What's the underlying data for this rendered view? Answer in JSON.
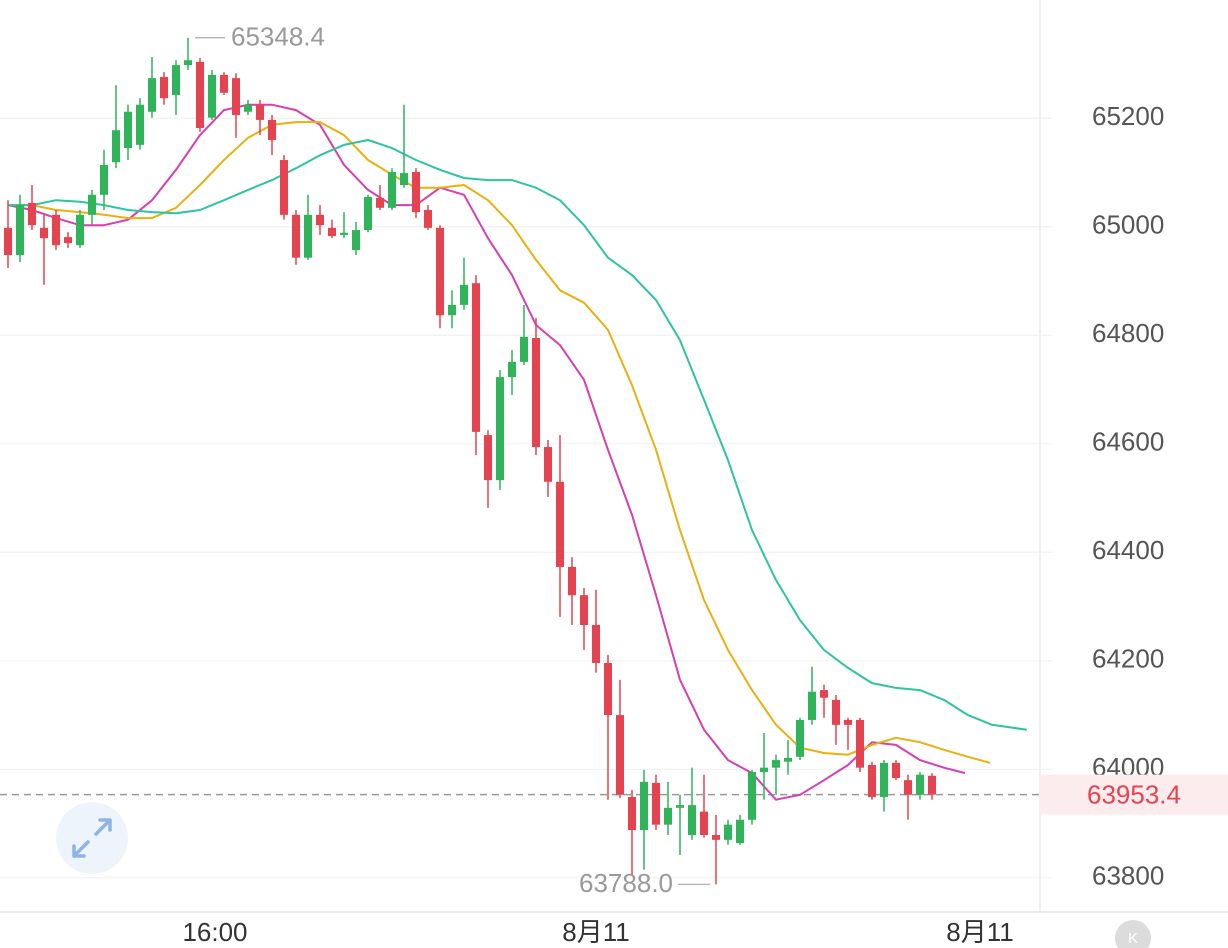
{
  "chart_data": {
    "type": "candlestick",
    "ylim": [
      63737,
      65418
    ],
    "yticks": [
      63800,
      64000,
      64200,
      64400,
      64600,
      64800,
      65000,
      65200
    ],
    "grid": true,
    "up_color": "#2fb45a",
    "down_color": "#e5434f",
    "x_labels": [
      "16:00",
      "8月11",
      "8月11"
    ],
    "ohlc": [
      [
        64998,
        65049,
        64924,
        64948
      ],
      [
        64948,
        65059,
        64935,
        65040
      ],
      [
        65044,
        65077,
        64994,
        65003
      ],
      [
        64998,
        65022,
        64893,
        64979
      ],
      [
        65022,
        65031,
        64957,
        64966
      ],
      [
        64981,
        64990,
        64961,
        64970
      ],
      [
        64966,
        65031,
        64961,
        65022
      ],
      [
        65022,
        65068,
        65003,
        65059
      ],
      [
        65059,
        65142,
        65031,
        65114
      ],
      [
        65119,
        65261,
        65108,
        65178
      ],
      [
        65145,
        65225,
        65123,
        65212
      ],
      [
        65151,
        65237,
        65142,
        65225
      ],
      [
        65212,
        65313,
        65201,
        65274
      ],
      [
        65276,
        65285,
        65225,
        65237
      ],
      [
        65243,
        65307,
        65206,
        65298
      ],
      [
        65298,
        65348.4,
        65289,
        65307
      ],
      [
        65304,
        65311,
        65175,
        65182
      ],
      [
        65201,
        65289,
        65197,
        65280
      ],
      [
        65280,
        65285,
        65243,
        65247
      ],
      [
        65274,
        65283,
        65164,
        65206
      ],
      [
        65212,
        65234,
        65206,
        65225
      ],
      [
        65225,
        65234,
        65169,
        65197
      ],
      [
        65197,
        65206,
        65132,
        65160
      ],
      [
        65123,
        65132,
        65013,
        65022
      ],
      [
        65022,
        65031,
        64930,
        64943
      ],
      [
        64943,
        65059,
        64939,
        65022
      ],
      [
        65022,
        65040,
        64985,
        65003
      ],
      [
        64998,
        65013,
        64979,
        64983
      ],
      [
        64985,
        65027,
        64979,
        64989
      ],
      [
        64957,
        65009,
        64948,
        64994
      ],
      [
        64994,
        65059,
        64990,
        65055
      ],
      [
        65053,
        65077,
        65031,
        65035
      ],
      [
        65035,
        65108,
        65031,
        65101
      ],
      [
        65077,
        65225,
        65072,
        65099
      ],
      [
        65101,
        65108,
        65016,
        65027
      ],
      [
        65031,
        65040,
        64994,
        64998
      ],
      [
        64998,
        65003,
        64813,
        64837
      ],
      [
        64837,
        64883,
        64813,
        64856
      ],
      [
        64856,
        64943,
        64847,
        64893
      ],
      [
        64896,
        64911,
        64579,
        64622
      ],
      [
        64616,
        64625,
        64482,
        64533
      ],
      [
        64533,
        64736,
        64515,
        64723
      ],
      [
        64723,
        64773,
        64690,
        64751
      ],
      [
        64751,
        64856,
        64745,
        64797
      ],
      [
        64795,
        64832,
        64579,
        64594
      ],
      [
        64594,
        64607,
        64502,
        64530
      ],
      [
        64530,
        64616,
        64281,
        64373
      ],
      [
        64373,
        64391,
        64266,
        64321
      ],
      [
        64321,
        64334,
        64220,
        64266
      ],
      [
        64266,
        64331,
        64178,
        64196
      ],
      [
        64196,
        64211,
        63944,
        64100
      ],
      [
        64100,
        64165,
        63947,
        63953
      ],
      [
        63949,
        63962,
        63805,
        63888
      ],
      [
        63888,
        63999,
        63815,
        63977
      ],
      [
        63975,
        63990,
        63888,
        63898
      ],
      [
        63898,
        63977,
        63879,
        63929
      ],
      [
        63929,
        63953,
        63842,
        63934
      ],
      [
        63879,
        64003,
        63870,
        63934
      ],
      [
        63922,
        63990,
        63874,
        63879
      ],
      [
        63879,
        63916,
        63788.0,
        63870
      ],
      [
        63870,
        63907,
        63861,
        63898
      ],
      [
        63864,
        63916,
        63861,
        63907
      ],
      [
        63907,
        63999,
        63898,
        63995
      ],
      [
        63995,
        64067,
        63944,
        64003
      ],
      [
        64003,
        64027,
        63953,
        64017
      ],
      [
        64014,
        64054,
        63990,
        64021
      ],
      [
        64023,
        64095,
        64017,
        64091
      ],
      [
        64091,
        64189,
        64082,
        64143
      ],
      [
        64146,
        64156,
        64095,
        64132
      ],
      [
        64128,
        64137,
        64045,
        64082
      ],
      [
        64091,
        64095,
        64036,
        64082
      ],
      [
        64091,
        64095,
        63995,
        64003
      ],
      [
        64008,
        64014,
        63944,
        63949
      ],
      [
        63949,
        64017,
        63922,
        64012
      ],
      [
        64012,
        64017,
        63980,
        63984
      ],
      [
        63980,
        63990,
        63907,
        63953
      ],
      [
        63953,
        63995,
        63944,
        63990
      ],
      [
        63988,
        63993,
        63944,
        63953.4
      ]
    ],
    "series": [
      {
        "color": "#d63fb0",
        "x": [
          0,
          2,
          4,
          6,
          8,
          10,
          12,
          14,
          16,
          18,
          20,
          22,
          24,
          26,
          28,
          30,
          32,
          34,
          36,
          38,
          40,
          42,
          44,
          46,
          48,
          50,
          52,
          54,
          56,
          58,
          60,
          62,
          64,
          66,
          68,
          70,
          72,
          74,
          76,
          78,
          79.75
        ],
        "values": [
          65040,
          65031,
          65016,
          65003,
          65003,
          65013,
          65049,
          65105,
          65169,
          65215,
          65225,
          65225,
          65215,
          65188,
          65114,
          65068,
          65040,
          65040,
          65072,
          65059,
          64979,
          64911,
          64819,
          64782,
          64718,
          64589,
          64469,
          64321,
          64165,
          64073,
          64017,
          63993,
          63944,
          63953,
          63980,
          64008,
          64050,
          64045,
          64017,
          64003,
          63993
        ]
      },
      {
        "color": "#e8b010",
        "x": [
          0,
          2,
          4,
          6,
          8,
          10,
          12,
          14,
          16,
          18,
          20,
          22,
          24,
          26,
          28,
          30,
          32,
          34,
          36,
          38,
          40,
          42,
          44,
          46,
          48,
          50,
          52,
          54,
          56,
          58,
          60,
          62,
          64,
          66,
          68,
          70,
          72,
          74,
          76,
          78,
          80,
          81.83
        ],
        "values": [
          65040,
          65040,
          65031,
          65027,
          65022,
          65016,
          65016,
          65035,
          65077,
          65123,
          65164,
          65188,
          65193,
          65193,
          65169,
          65123,
          65096,
          65072,
          65072,
          65077,
          65049,
          65003,
          64939,
          64883,
          64860,
          64810,
          64708,
          64589,
          64441,
          64312,
          64220,
          64146,
          64082,
          64040,
          64030,
          64027,
          64045,
          64058,
          64050,
          64036,
          64023,
          64012
        ]
      },
      {
        "color": "#2ec4a0",
        "x": [
          0,
          2,
          4,
          6,
          8,
          10,
          12,
          14,
          16,
          18,
          20,
          22,
          24,
          26,
          28,
          30,
          32,
          34,
          36,
          38,
          40,
          42,
          44,
          46,
          48,
          50,
          52,
          54,
          56,
          58,
          60,
          62,
          64,
          66,
          68,
          70,
          72,
          74,
          76,
          78,
          80,
          82,
          84.9
        ],
        "values": [
          65040,
          65040,
          65049,
          65046,
          65040,
          65031,
          65027,
          65025,
          65031,
          65049,
          65068,
          65086,
          65108,
          65132,
          65151,
          65160,
          65145,
          65123,
          65105,
          65090,
          65086,
          65086,
          65072,
          65049,
          65003,
          64943,
          64911,
          64865,
          64791,
          64681,
          64570,
          64441,
          64349,
          64275,
          64220,
          64187,
          64159,
          64150,
          64146,
          64128,
          64100,
          64082,
          64073
        ]
      }
    ],
    "max_label": "65348.4",
    "min_label": "63788.0",
    "last_price_label": "63953.4",
    "k_button": "K"
  }
}
